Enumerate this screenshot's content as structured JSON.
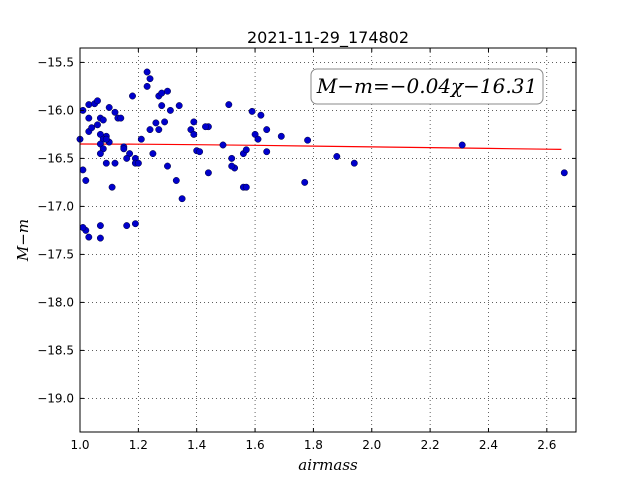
{
  "chart_data": {
    "type": "scatter",
    "title": "2021-11-29_174802",
    "xlabel": "airmass",
    "ylabel": "M−m",
    "xlim": [
      1.0,
      2.7
    ],
    "ylim": [
      -19.35,
      -15.35
    ],
    "y_inverted": true,
    "grid": true,
    "xticks": [
      1.0,
      1.2,
      1.4,
      1.6,
      1.8,
      2.0,
      2.2,
      2.4,
      2.6
    ],
    "xtick_labels": [
      "1.0",
      "1.2",
      "1.4",
      "1.6",
      "1.8",
      "2.0",
      "2.2",
      "2.4",
      "2.6"
    ],
    "yticks": [
      -15.5,
      -16.0,
      -16.5,
      -17.0,
      -17.5,
      -18.0,
      -18.5,
      -19.0
    ],
    "ytick_labels": [
      "−15.5",
      "−16.0",
      "−16.5",
      "−17.0",
      "−17.5",
      "−18.0",
      "−18.5",
      "−19.0"
    ],
    "annotation": "M−m=−0.04χ−16.31",
    "point_color": "#0000cc",
    "fit_color": "#ff0000",
    "series": [
      {
        "kind": "points",
        "x": [
          1.0,
          1.01,
          1.01,
          1.03,
          1.03,
          1.03,
          1.05,
          1.06,
          1.04,
          1.07,
          1.08,
          1.07,
          1.09,
          1.08,
          1.1,
          1.12,
          1.13,
          1.14,
          1.1,
          1.07,
          1.08,
          1.09,
          1.07,
          1.06,
          1.12,
          1.11,
          1.09,
          1.15,
          1.17,
          1.19,
          1.16,
          1.19,
          1.2,
          1.21,
          1.18,
          1.15,
          1.19,
          1.16,
          1.23,
          1.24,
          1.23,
          1.27,
          1.28,
          1.3,
          1.28,
          1.24,
          1.29,
          1.27,
          1.26,
          1.25,
          1.31,
          1.34,
          1.33,
          1.3,
          1.35,
          1.38,
          1.39,
          1.39,
          1.4,
          1.44,
          1.44,
          1.41,
          1.43,
          1.49,
          1.51,
          1.52,
          1.53,
          1.52,
          1.56,
          1.57,
          1.56,
          1.57,
          1.59,
          1.6,
          1.62,
          1.61,
          1.64,
          1.64,
          1.69,
          1.78,
          1.77,
          1.88,
          1.94,
          2.31,
          2.66,
          1.02,
          1.02,
          1.03,
          1.01,
          1.07,
          1.07
        ],
        "y": [
          -16.3,
          -16.62,
          -16.0,
          -15.94,
          -16.08,
          -16.22,
          -15.93,
          -15.9,
          -16.18,
          -16.08,
          -16.1,
          -16.25,
          -16.27,
          -16.3,
          -15.97,
          -16.02,
          -16.08,
          -16.08,
          -16.33,
          -16.35,
          -16.4,
          -16.3,
          -16.45,
          -16.15,
          -16.55,
          -16.8,
          -16.55,
          -16.38,
          -16.45,
          -16.5,
          -16.5,
          -16.55,
          -16.55,
          -16.3,
          -15.85,
          -16.4,
          -17.18,
          -17.2,
          -15.6,
          -15.67,
          -15.75,
          -15.85,
          -15.82,
          -15.8,
          -15.95,
          -16.2,
          -16.12,
          -16.2,
          -16.13,
          -16.45,
          -16.0,
          -15.95,
          -16.73,
          -16.58,
          -16.92,
          -16.2,
          -16.12,
          -16.25,
          -16.42,
          -16.17,
          -16.65,
          -16.43,
          -16.17,
          -16.36,
          -15.94,
          -16.5,
          -16.6,
          -16.58,
          -16.45,
          -16.41,
          -16.8,
          -16.8,
          -16.01,
          -16.25,
          -16.05,
          -16.3,
          -16.2,
          -16.43,
          -16.27,
          -16.31,
          -16.75,
          -16.48,
          -16.55,
          -16.36,
          -16.65,
          -16.73,
          -17.25,
          -17.32,
          -17.22,
          -17.2,
          -17.33
        ]
      },
      {
        "kind": "fit-line",
        "x": [
          1.0,
          1.2,
          1.4,
          1.6,
          1.8,
          2.0,
          2.2,
          2.4,
          2.6,
          2.65
        ],
        "y": [
          -16.35,
          -16.352,
          -16.357,
          -16.364,
          -16.372,
          -16.38,
          -16.388,
          -16.396,
          -16.404,
          -16.406
        ]
      }
    ]
  }
}
